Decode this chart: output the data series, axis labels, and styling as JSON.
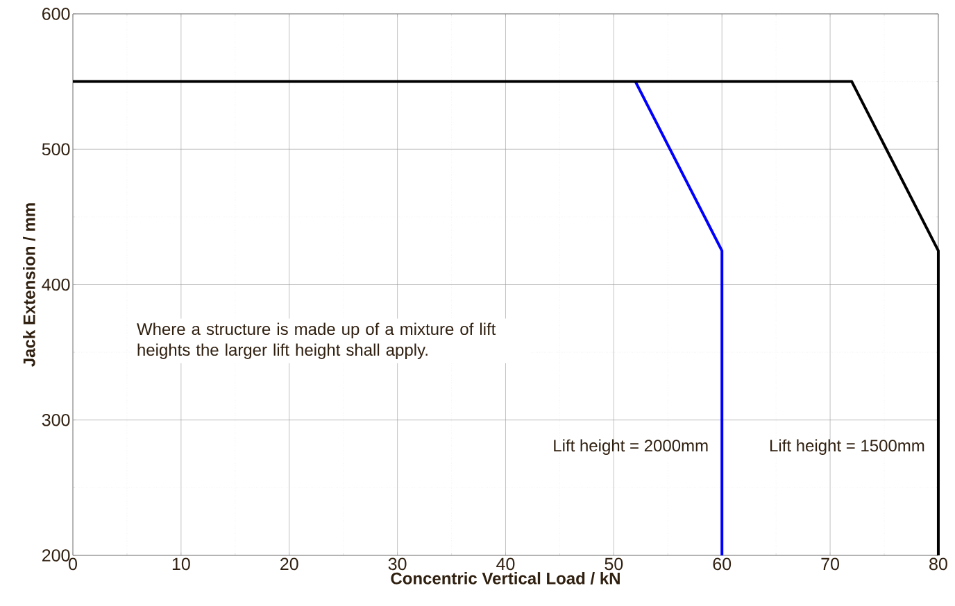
{
  "chart_data": {
    "type": "line",
    "xlabel": "Concentric Vertical Load / kN",
    "ylabel": "Jack Extension / mm",
    "series": [
      {
        "name": "Lift height = 2000mm",
        "color": "#0000ff",
        "x": [
          52,
          60,
          60
        ],
        "values": [
          550,
          425,
          200
        ]
      },
      {
        "name": "Lift height = 1500mm",
        "color": "#000000",
        "x": [
          0,
          72,
          80,
          80
        ],
        "values": [
          550,
          550,
          425,
          200
        ]
      }
    ],
    "annotations": [
      "Where a structure is made up of a mixture of lift heights the larger lift height shall apply."
    ],
    "xlim": [
      0,
      80
    ],
    "ylim": [
      200,
      600
    ],
    "xticks": [
      0,
      10,
      20,
      30,
      40,
      50,
      60,
      70,
      80
    ],
    "yticks": [
      200,
      300,
      400,
      500,
      600
    ],
    "grid": true,
    "legend": false,
    "marker": "none",
    "line_style": "solid"
  }
}
